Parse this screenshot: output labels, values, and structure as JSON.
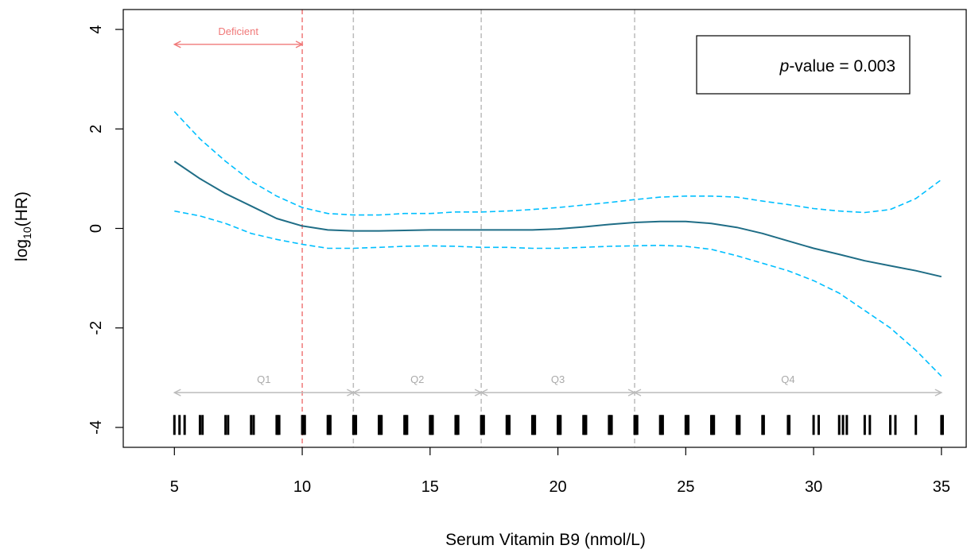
{
  "chart_data": {
    "type": "line",
    "xlabel": "Serum Vitamin B9 (nmol/L)",
    "ylabel_main": "log",
    "ylabel_sub": "10",
    "ylabel_tail": "(HR)",
    "xlim": [
      3,
      36
    ],
    "ylim": [
      -4.4,
      4.4
    ],
    "xticks": [
      5,
      10,
      15,
      20,
      25,
      30,
      35
    ],
    "yticks": [
      -4,
      -2,
      0,
      2,
      4
    ],
    "colors": {
      "fit": "#1f6d86",
      "ci": "#00bfff",
      "deficient": "#f07878",
      "quartile": "#bbbbbb",
      "rug": "#000000"
    },
    "series": [
      {
        "role": "fit",
        "style": "solid",
        "x": [
          5,
          6,
          7,
          8,
          9,
          10,
          11,
          12,
          13,
          14,
          15,
          16,
          17,
          18,
          19,
          20,
          21,
          22,
          23,
          24,
          25,
          26,
          27,
          28,
          29,
          30,
          31,
          32,
          33,
          34,
          35
        ],
        "y": [
          1.35,
          1.0,
          0.7,
          0.45,
          0.2,
          0.05,
          -0.03,
          -0.05,
          -0.05,
          -0.04,
          -0.03,
          -0.03,
          -0.03,
          -0.03,
          -0.03,
          -0.01,
          0.03,
          0.08,
          0.12,
          0.14,
          0.14,
          0.1,
          0.02,
          -0.1,
          -0.25,
          -0.4,
          -0.52,
          -0.65,
          -0.75,
          -0.85,
          -0.97
        ]
      },
      {
        "role": "ci-upper",
        "style": "dashed",
        "x": [
          5,
          6,
          7,
          8,
          9,
          10,
          11,
          12,
          13,
          14,
          15,
          16,
          17,
          18,
          19,
          20,
          21,
          22,
          23,
          24,
          25,
          26,
          27,
          28,
          29,
          30,
          31,
          32,
          33,
          34,
          35
        ],
        "y": [
          2.35,
          1.8,
          1.35,
          0.95,
          0.65,
          0.42,
          0.3,
          0.27,
          0.27,
          0.3,
          0.3,
          0.33,
          0.33,
          0.35,
          0.38,
          0.42,
          0.47,
          0.52,
          0.58,
          0.63,
          0.65,
          0.65,
          0.63,
          0.55,
          0.48,
          0.4,
          0.35,
          0.32,
          0.38,
          0.6,
          0.98
        ]
      },
      {
        "role": "ci-lower",
        "style": "dashed",
        "x": [
          5,
          6,
          7,
          8,
          9,
          10,
          11,
          12,
          13,
          14,
          15,
          16,
          17,
          18,
          19,
          20,
          21,
          22,
          23,
          24,
          25,
          26,
          27,
          28,
          29,
          30,
          31,
          32,
          33,
          34,
          35
        ],
        "y": [
          0.35,
          0.25,
          0.1,
          -0.1,
          -0.22,
          -0.32,
          -0.4,
          -0.4,
          -0.38,
          -0.36,
          -0.35,
          -0.36,
          -0.38,
          -0.38,
          -0.4,
          -0.4,
          -0.38,
          -0.36,
          -0.35,
          -0.34,
          -0.36,
          -0.42,
          -0.55,
          -0.7,
          -0.85,
          -1.05,
          -1.3,
          -1.65,
          -2.0,
          -2.45,
          -2.97
        ]
      }
    ],
    "vlines": [
      {
        "x": 10,
        "kind": "deficient"
      },
      {
        "x": 12,
        "kind": "quartile"
      },
      {
        "x": 17,
        "kind": "quartile"
      },
      {
        "x": 23,
        "kind": "quartile"
      }
    ],
    "deficient_annotation": {
      "label": "Deficient",
      "x_from": 5,
      "x_to": 10,
      "y": 3.7
    },
    "quartiles": [
      {
        "label": "Q1",
        "x_from": 5,
        "x_to": 12
      },
      {
        "label": "Q2",
        "x_from": 12,
        "x_to": 17
      },
      {
        "label": "Q3",
        "x_from": 17,
        "x_to": 23
      },
      {
        "label": "Q4",
        "x_from": 23,
        "x_to": 35
      }
    ],
    "quartile_y": -3.3,
    "rug": {
      "y_from": -3.75,
      "y_to": -4.15,
      "x": [
        5,
        5.2,
        5.4,
        6,
        6.1,
        7,
        7.1,
        8,
        8.1,
        9,
        9.05,
        9.1,
        10,
        10.05,
        10.1,
        11,
        11.05,
        11.1,
        12,
        12.05,
        12.1,
        13,
        13.05,
        13.1,
        14,
        14.05,
        14.1,
        15,
        15.05,
        15.1,
        16,
        16.05,
        16.1,
        17,
        17.05,
        17.1,
        18,
        18.05,
        18.1,
        19,
        19.05,
        19.1,
        20,
        20.05,
        20.1,
        21,
        21.05,
        21.1,
        22,
        22.05,
        22.1,
        23,
        23.05,
        23.1,
        24,
        24.05,
        24.1,
        25,
        25.05,
        25.1,
        26,
        26.05,
        26.1,
        27,
        27.05,
        27.1,
        28,
        28.05,
        29,
        29.05,
        30,
        30.2,
        31,
        31.15,
        31.3,
        32,
        32.2,
        33,
        33.2,
        34,
        35,
        35.05
      ]
    },
    "legend": {
      "italic": "p",
      "text": "-value = 0.003",
      "placement": "top-right"
    }
  }
}
